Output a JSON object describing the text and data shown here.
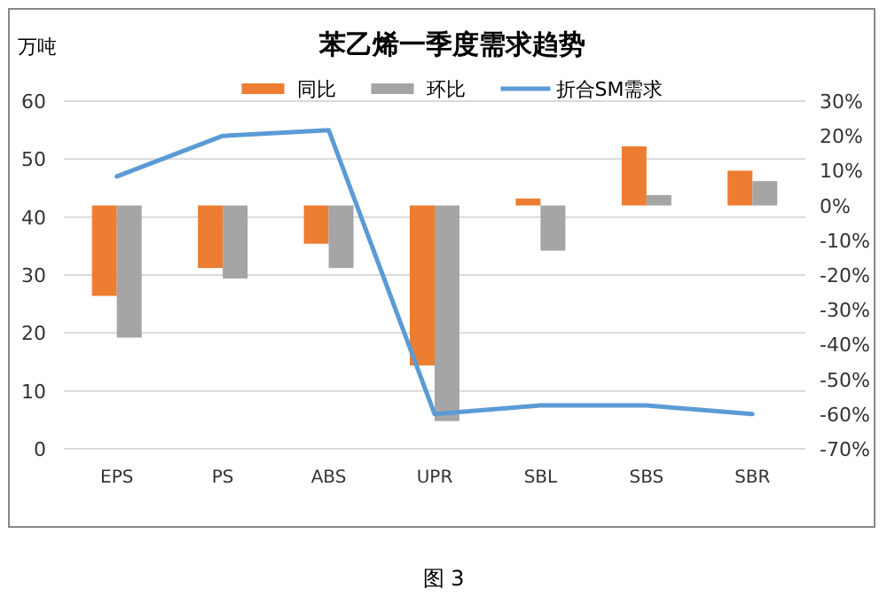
{
  "chart_data": {
    "type": "bar",
    "title": "苯乙烯一季度需求趋势",
    "ylabel": "万吨",
    "categories": [
      "EPS",
      "PS",
      "ABS",
      "UPR",
      "SBL",
      "SBS",
      "SBR"
    ],
    "series": [
      {
        "name": "同比",
        "color": "#ed7d31",
        "axis": "y2",
        "values": [
          -26,
          -18,
          -11,
          -46,
          2,
          17,
          10
        ]
      },
      {
        "name": "环比",
        "color": "#a5a5a5",
        "axis": "y2",
        "values": [
          -38,
          -21,
          -18,
          -62,
          -13,
          3,
          7
        ]
      },
      {
        "name": "折合SM需求",
        "type": "line",
        "color": "#5b9bd5",
        "values": [
          47,
          54,
          55,
          6,
          7.5,
          7.5,
          6
        ]
      }
    ],
    "ylim": [
      0,
      60
    ],
    "yticks": [
      0,
      10,
      20,
      30,
      40,
      50,
      60
    ],
    "y2lim": [
      -70,
      30
    ],
    "y2ticks": [
      {
        "value": -70,
        "label": "-70%"
      },
      {
        "value": -60,
        "label": "-60%"
      },
      {
        "value": -50,
        "label": "-50%"
      },
      {
        "value": -40,
        "label": "-40%"
      },
      {
        "value": -30,
        "label": "-30%"
      },
      {
        "value": -20,
        "label": "-20%"
      },
      {
        "value": -10,
        "label": "-10%"
      },
      {
        "value": 0,
        "label": "0%"
      },
      {
        "value": 10,
        "label": "10%"
      },
      {
        "value": 20,
        "label": "20%"
      },
      {
        "value": 30,
        "label": "30%"
      }
    ],
    "grid": "y",
    "legend": "top",
    "marker": "none",
    "line_style": "solid",
    "annotations": [
      "图 3"
    ]
  }
}
